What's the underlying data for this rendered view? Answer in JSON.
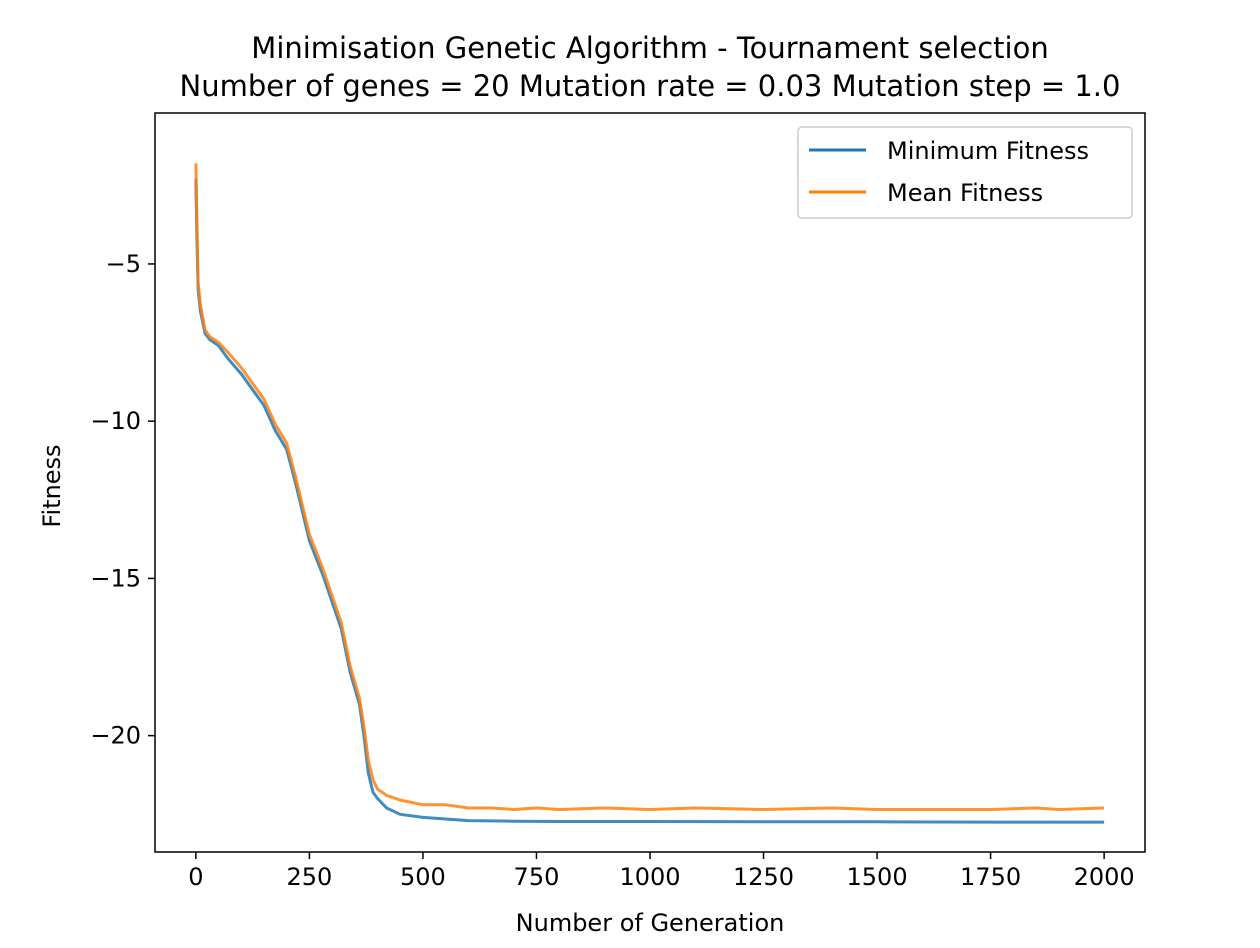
{
  "chart_data": {
    "type": "line",
    "title": "Minimisation Genetic Algorithm - Tournament selection",
    "subtitle": "Number of genes = 20 Mutation rate = 0.03 Mutation step = 1.0",
    "xlabel": "Number of Generation",
    "ylabel": "Fitness",
    "xlim": [
      -90,
      2090
    ],
    "ylim": [
      -23.7,
      -0.2
    ],
    "x_ticks": [
      0,
      250,
      500,
      750,
      1000,
      1250,
      1500,
      1750,
      2000
    ],
    "x_tick_labels": [
      "0",
      "250",
      "500",
      "750",
      "1000",
      "1250",
      "1500",
      "1750",
      "2000"
    ],
    "y_ticks": [
      -5,
      -10,
      -15,
      -20
    ],
    "y_tick_labels": [
      "−5",
      "−10",
      "−15",
      "−20"
    ],
    "grid": false,
    "legend_position": "top-right",
    "series": [
      {
        "name": "Minimum Fitness",
        "color": "#1f77b4",
        "x": [
          0,
          2,
          5,
          10,
          20,
          30,
          50,
          70,
          100,
          150,
          175,
          200,
          220,
          250,
          280,
          320,
          340,
          360,
          370,
          380,
          390,
          400,
          420,
          450,
          500,
          550,
          600,
          700,
          800,
          1000,
          1250,
          1500,
          1750,
          2000
        ],
        "y": [
          -2.3,
          -4.0,
          -5.8,
          -6.5,
          -7.2,
          -7.4,
          -7.6,
          -8.0,
          -8.5,
          -9.5,
          -10.3,
          -10.9,
          -12.0,
          -13.8,
          -14.9,
          -16.6,
          -18.0,
          -19.0,
          -20.0,
          -21.2,
          -21.8,
          -22.0,
          -22.3,
          -22.5,
          -22.6,
          -22.65,
          -22.7,
          -22.72,
          -22.73,
          -22.73,
          -22.74,
          -22.74,
          -22.75,
          -22.75
        ]
      },
      {
        "name": "Mean Fitness",
        "color": "#ff7f0e",
        "x": [
          0,
          2,
          5,
          10,
          20,
          30,
          50,
          70,
          100,
          150,
          175,
          200,
          220,
          250,
          280,
          320,
          340,
          360,
          370,
          380,
          390,
          400,
          420,
          450,
          500,
          550,
          600,
          650,
          700,
          750,
          800,
          900,
          1000,
          1100,
          1250,
          1400,
          1500,
          1600,
          1750,
          1850,
          1900,
          2000
        ],
        "y": [
          -1.8,
          -3.5,
          -5.6,
          -6.3,
          -7.1,
          -7.3,
          -7.5,
          -7.8,
          -8.3,
          -9.3,
          -10.1,
          -10.7,
          -11.8,
          -13.6,
          -14.7,
          -16.4,
          -17.8,
          -18.8,
          -19.7,
          -20.8,
          -21.4,
          -21.7,
          -21.9,
          -22.05,
          -22.2,
          -22.2,
          -22.3,
          -22.3,
          -22.35,
          -22.3,
          -22.35,
          -22.3,
          -22.35,
          -22.3,
          -22.35,
          -22.3,
          -22.35,
          -22.35,
          -22.35,
          -22.3,
          -22.35,
          -22.3
        ]
      }
    ]
  }
}
